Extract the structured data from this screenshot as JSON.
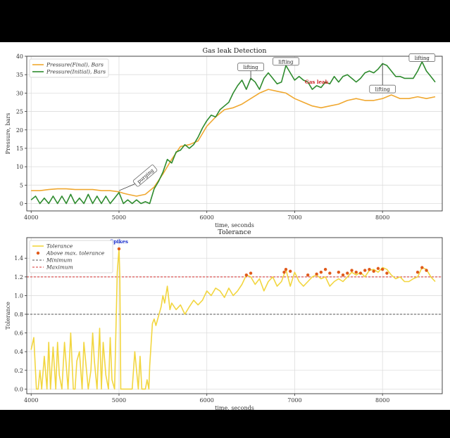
{
  "chart_data": [
    {
      "type": "line",
      "title": "Gas leak Detection",
      "xlabel": "time, seconds",
      "ylabel": "Pressure, bars",
      "xlim": [
        3950,
        8680
      ],
      "ylim": [
        -2,
        40
      ],
      "xticks": [
        4000,
        5000,
        6000,
        7000,
        8000
      ],
      "yticks": [
        0,
        5,
        10,
        15,
        20,
        25,
        30,
        35,
        40
      ],
      "grid": true,
      "legend": "top-left",
      "series": [
        {
          "name": "Pressure(Final), Bars",
          "color": "#f0a830",
          "x": [
            4000,
            4100,
            4200,
            4300,
            4400,
            4500,
            4600,
            4700,
            4800,
            4900,
            5000,
            5050,
            5100,
            5200,
            5300,
            5400,
            5500,
            5600,
            5700,
            5800,
            5900,
            6000,
            6100,
            6200,
            6300,
            6400,
            6500,
            6600,
            6700,
            6800,
            6900,
            7000,
            7100,
            7200,
            7300,
            7400,
            7500,
            7600,
            7700,
            7800,
            7900,
            8000,
            8100,
            8200,
            8300,
            8400,
            8500,
            8600
          ],
          "values": [
            3.5,
            3.5,
            3.8,
            4.0,
            4.0,
            3.8,
            3.8,
            3.8,
            3.5,
            3.5,
            3.2,
            2.8,
            2.5,
            2.0,
            2.5,
            4.5,
            8.0,
            12.0,
            15.5,
            16.0,
            17.0,
            21.0,
            23.5,
            25.5,
            26.0,
            27.0,
            28.5,
            30.0,
            31.0,
            30.5,
            30.0,
            28.5,
            27.5,
            26.5,
            26.0,
            26.5,
            27.0,
            28.0,
            28.5,
            28.0,
            28.0,
            28.5,
            29.5,
            28.5,
            28.5,
            29.0,
            28.5,
            29.0
          ]
        },
        {
          "name": "Pressure(Initial), Bars",
          "color": "#2e8b2e",
          "x": [
            4000,
            4050,
            4100,
            4150,
            4200,
            4250,
            4300,
            4350,
            4400,
            4450,
            4500,
            4550,
            4600,
            4650,
            4700,
            4750,
            4800,
            4850,
            4900,
            4950,
            5000,
            5050,
            5100,
            5150,
            5200,
            5250,
            5300,
            5350,
            5400,
            5450,
            5500,
            5550,
            5600,
            5650,
            5700,
            5750,
            5800,
            5850,
            5900,
            5950,
            6000,
            6050,
            6100,
            6150,
            6200,
            6250,
            6300,
            6350,
            6400,
            6450,
            6500,
            6550,
            6600,
            6650,
            6700,
            6750,
            6800,
            6850,
            6900,
            6950,
            7000,
            7050,
            7100,
            7150,
            7200,
            7250,
            7300,
            7350,
            7400,
            7450,
            7500,
            7550,
            7600,
            7650,
            7700,
            7750,
            7800,
            7850,
            7900,
            7950,
            8000,
            8050,
            8100,
            8150,
            8200,
            8250,
            8300,
            8350,
            8400,
            8450,
            8500,
            8550,
            8600
          ],
          "values": [
            1.0,
            2.0,
            0.0,
            1.5,
            0.0,
            2.0,
            0.0,
            2.0,
            0.0,
            2.5,
            0.0,
            1.5,
            0.0,
            2.5,
            0.0,
            2.0,
            0.0,
            2.0,
            0.0,
            1.5,
            3.0,
            0.0,
            1.0,
            0.0,
            1.0,
            0.0,
            0.5,
            0.0,
            4.0,
            6.0,
            8.5,
            12.0,
            11.0,
            14.0,
            14.5,
            16.0,
            15.0,
            16.0,
            18.0,
            20.5,
            22.5,
            24.0,
            23.5,
            25.5,
            26.5,
            27.5,
            30.0,
            32.0,
            33.5,
            31.0,
            34.0,
            33.0,
            31.0,
            34.0,
            35.5,
            34.0,
            32.5,
            33.0,
            37.5,
            35.5,
            33.5,
            34.5,
            33.5,
            33.0,
            31.0,
            32.0,
            31.5,
            33.0,
            32.5,
            34.5,
            33.0,
            34.5,
            35.0,
            34.0,
            33.0,
            34.0,
            35.5,
            36.0,
            35.5,
            36.5,
            38.0,
            37.5,
            36.0,
            34.5,
            34.5,
            34.0,
            34.0,
            34.0,
            36.0,
            38.5,
            36.0,
            34.5,
            33.0
          ]
        }
      ],
      "annotations": [
        {
          "text": "purging",
          "x": 5300,
          "y": 7.5,
          "arrow_to": [
            5000,
            3.5
          ]
        },
        {
          "text": "lifting",
          "x": 6500,
          "y": 37,
          "arrow_to": [
            6500,
            33.5
          ]
        },
        {
          "text": "lifting",
          "x": 6900,
          "y": 38.5,
          "arrow_to": [
            6900,
            37.5
          ]
        },
        {
          "text": "Gas leak",
          "x": 7250,
          "y": 33,
          "color": "#cc2222"
        },
        {
          "text": "lifting",
          "x": 8000,
          "y": 31,
          "arrow_to": [
            8000,
            38
          ]
        },
        {
          "text": "lifting",
          "x": 8450,
          "y": 39.5,
          "arrow_to": [
            8450,
            38.5
          ]
        }
      ]
    },
    {
      "type": "line",
      "title": "Tolerance",
      "xlabel": "time, seconds",
      "ylabel": "Tolerance",
      "xlim": [
        3950,
        8680
      ],
      "ylim": [
        -0.05,
        1.62
      ],
      "xticks": [
        4000,
        5000,
        6000,
        7000,
        8000
      ],
      "yticks": [
        0.0,
        0.2,
        0.4,
        0.6,
        0.8,
        1.0,
        1.2,
        1.4
      ],
      "grid": true,
      "legend": "top-left",
      "series": [
        {
          "name": "Tolerance",
          "color": "#f2d640",
          "x": [
            4000,
            4030,
            4060,
            4080,
            4100,
            4120,
            4150,
            4180,
            4200,
            4220,
            4250,
            4280,
            4300,
            4320,
            4350,
            4380,
            4400,
            4420,
            4450,
            4480,
            4500,
            4520,
            4550,
            4580,
            4600,
            4620,
            4650,
            4680,
            4700,
            4720,
            4750,
            4780,
            4800,
            4820,
            4850,
            4880,
            4900,
            4920,
            4950,
            4980,
            5000,
            5010,
            5020,
            5050,
            5080,
            5100,
            5120,
            5150,
            5180,
            5200,
            5220,
            5240,
            5260,
            5300,
            5320,
            5340,
            5350,
            5380,
            5400,
            5420,
            5450,
            5480,
            5500,
            5520,
            5550,
            5580,
            5600,
            5650,
            5700,
            5750,
            5800,
            5850,
            5900,
            5950,
            6000,
            6050,
            6100,
            6150,
            6200,
            6250,
            6300,
            6350,
            6400,
            6450,
            6500,
            6550,
            6600,
            6650,
            6700,
            6750,
            6800,
            6850,
            6900,
            6950,
            7000,
            7050,
            7100,
            7150,
            7200,
            7250,
            7300,
            7350,
            7400,
            7450,
            7500,
            7550,
            7600,
            7650,
            7700,
            7750,
            7800,
            7850,
            7900,
            7950,
            8000,
            8050,
            8100,
            8150,
            8200,
            8250,
            8300,
            8350,
            8400,
            8450,
            8500,
            8550,
            8600
          ],
          "values": [
            0.42,
            0.55,
            0.0,
            0.0,
            0.2,
            0.0,
            0.35,
            0.0,
            0.5,
            0.0,
            0.45,
            0.0,
            0.5,
            0.15,
            0.0,
            0.5,
            0.25,
            0.0,
            0.6,
            0.0,
            0.0,
            0.3,
            0.4,
            0.0,
            0.5,
            0.3,
            0.0,
            0.2,
            0.6,
            0.3,
            0.0,
            0.65,
            0.0,
            0.5,
            0.15,
            0.0,
            0.55,
            0.1,
            0.0,
            1.25,
            1.5,
            1.2,
            0.0,
            0.0,
            0.0,
            0.0,
            0.0,
            0.0,
            0.4,
            0.2,
            0.0,
            0.35,
            0.0,
            0.0,
            0.1,
            0.0,
            0.25,
            0.7,
            0.75,
            0.68,
            0.78,
            0.88,
            1.0,
            0.92,
            1.1,
            0.85,
            0.92,
            0.85,
            0.9,
            0.8,
            0.88,
            0.95,
            0.9,
            0.95,
            1.05,
            1.0,
            1.08,
            1.05,
            0.98,
            1.08,
            1.0,
            1.05,
            1.12,
            1.22,
            1.2,
            1.12,
            1.18,
            1.05,
            1.15,
            1.2,
            1.1,
            1.15,
            1.28,
            1.1,
            1.25,
            1.15,
            1.1,
            1.15,
            1.2,
            1.22,
            1.18,
            1.2,
            1.1,
            1.15,
            1.18,
            1.15,
            1.2,
            1.25,
            1.22,
            1.25,
            1.2,
            1.27,
            1.28,
            1.25,
            1.3,
            1.28,
            1.22,
            1.18,
            1.2,
            1.15,
            1.15,
            1.18,
            1.2,
            1.3,
            1.28,
            1.2,
            1.15
          ]
        }
      ],
      "markers": {
        "name": "Above max. tolerance",
        "color": "#e05a1a",
        "x": [
          5000,
          6450,
          6500,
          6880,
          6900,
          6950,
          7150,
          7250,
          7300,
          7350,
          7400,
          7500,
          7550,
          7600,
          7650,
          7700,
          7750,
          7800,
          7850,
          7900,
          7950,
          8000,
          8050,
          8400,
          8450,
          8500
        ],
        "values": [
          1.5,
          1.22,
          1.24,
          1.25,
          1.28,
          1.26,
          1.22,
          1.23,
          1.25,
          1.28,
          1.24,
          1.25,
          1.22,
          1.24,
          1.27,
          1.25,
          1.24,
          1.27,
          1.28,
          1.26,
          1.29,
          1.28,
          1.24,
          1.25,
          1.3,
          1.27
        ]
      },
      "hlines": [
        {
          "name": "Minimum",
          "y": 0.8,
          "color": "#555555"
        },
        {
          "name": "Maximum",
          "y": 1.2,
          "color": "#d63030"
        }
      ],
      "annotations": [
        {
          "text": "Spikes",
          "x": 5000,
          "y": 1.58,
          "color": "#1a2fcc"
        }
      ]
    }
  ]
}
